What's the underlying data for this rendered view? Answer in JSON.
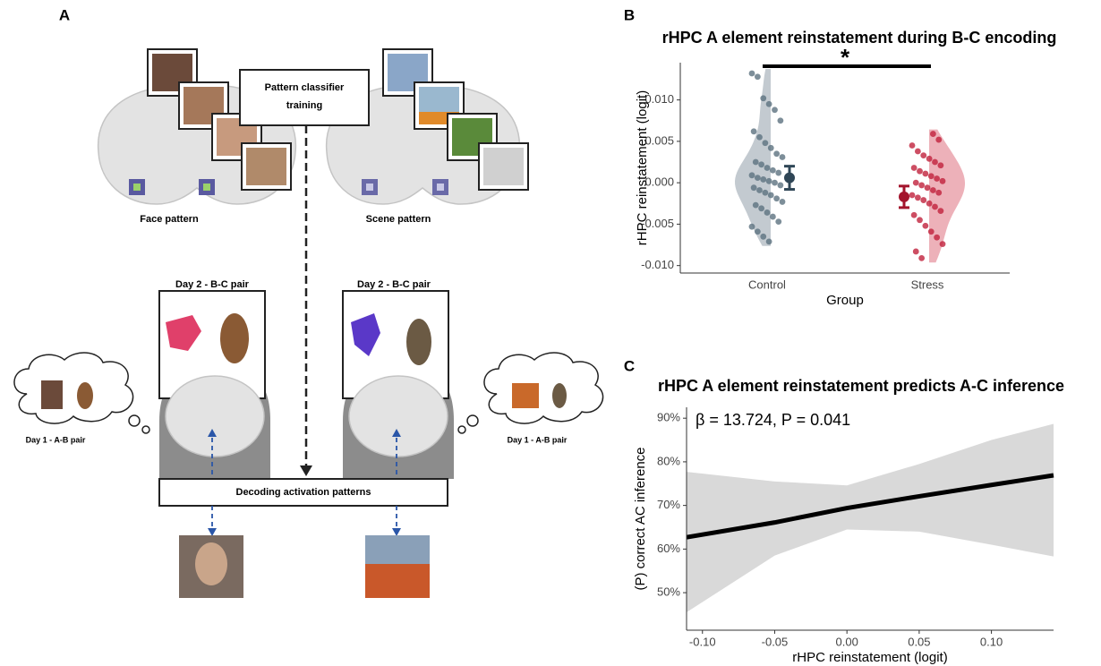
{
  "panels": {
    "a": "A",
    "b": "B",
    "c": "C"
  },
  "diagram": {
    "classifier": [
      "Pattern classifier",
      "training"
    ],
    "face_pattern": "Face pattern",
    "scene_pattern": "Scene pattern",
    "day2_left": "Day 2 - B-C pair",
    "day2_right": "Day 2 - B-C pair",
    "day1_left": "Day 1 - A-B pair",
    "day1_right": "Day 1 - A-B pair",
    "decoding": "Decoding activation patterns"
  },
  "chart_data": [
    {
      "type": "raincloud",
      "title": "rHPC A element reinstatement during B-C encoding",
      "x_label": "Group",
      "y_label": "rHPC reinstatement (logit)",
      "categories": [
        "Control",
        "Stress"
      ],
      "values": [
        [
          0.0132,
          0.0128,
          0.0102,
          0.0095,
          0.0088,
          0.0075,
          0.0062,
          0.0055,
          0.0048,
          0.0042,
          0.0035,
          0.0031,
          0.0025,
          0.0022,
          0.0018,
          0.0015,
          0.0012,
          0.0009,
          0.0006,
          0.0004,
          0.0002,
          0.0,
          -0.0003,
          -0.0006,
          -0.0009,
          -0.0012,
          -0.0015,
          -0.0019,
          -0.0023,
          -0.0027,
          -0.0031,
          -0.0036,
          -0.0041,
          -0.0047,
          -0.0053,
          -0.0059,
          -0.0065,
          -0.0071
        ],
        [
          0.0059,
          0.0052,
          0.0045,
          0.0038,
          0.0033,
          0.0029,
          0.0025,
          0.0021,
          0.0018,
          0.0014,
          0.0011,
          0.0008,
          0.0005,
          0.0002,
          0.0,
          -0.0003,
          -0.0006,
          -0.0009,
          -0.0012,
          -0.0015,
          -0.0018,
          -0.0021,
          -0.0025,
          -0.0029,
          -0.0034,
          -0.0039,
          -0.0045,
          -0.0052,
          -0.0059,
          -0.0066,
          -0.0074,
          -0.0083,
          -0.0091
        ]
      ],
      "means": [
        0.0006,
        -0.0017
      ],
      "errors": [
        0.0014,
        0.0013
      ],
      "colors": [
        "#5d7280",
        "#c0223c"
      ],
      "violin_colors": [
        "#b9c1c8",
        "#eaa3ad"
      ],
      "mean_colors": [
        "#2f4656",
        "#a3142c"
      ],
      "annotation": "*",
      "ylim": [
        -0.0109,
        0.0145
      ],
      "yticks": [
        {
          "value": 0.01,
          "label": "0.010"
        },
        {
          "value": 0.005,
          "label": "0.005"
        },
        {
          "value": 0,
          "label": "0.000"
        },
        {
          "value": -0.005,
          "label": "-0.005"
        },
        {
          "value": -0.01,
          "label": "-0.010"
        }
      ],
      "grid": false
    },
    {
      "type": "line",
      "title": "rHPC A element reinstatement predicts A-C inference",
      "annotation": "β = 13.724, P = 0.041",
      "x_label": "rHPC reinstatement (logit)",
      "y_label": "(P) correct AC inference",
      "x": [
        -0.111,
        -0.05,
        0.0,
        0.05,
        0.1,
        0.143
      ],
      "values": [
        62.7,
        66.1,
        69.4,
        72.1,
        74.7,
        76.9
      ],
      "upper": [
        77.7,
        75.5,
        74.6,
        79.5,
        85.0,
        88.7
      ],
      "lower": [
        45.5,
        58.5,
        64.5,
        64.0,
        61.0,
        58.3
      ],
      "color": "#000000",
      "band_color": "#d9d9d9",
      "xlim": [
        -0.111,
        0.143
      ],
      "ylim": [
        41.4,
        92.5
      ],
      "xticks": [
        {
          "value": -0.1,
          "label": "-0.10"
        },
        {
          "value": -0.05,
          "label": "-0.05"
        },
        {
          "value": 0,
          "label": "0.00"
        },
        {
          "value": 0.05,
          "label": "0.05"
        },
        {
          "value": 0.1,
          "label": "0.10"
        }
      ],
      "yticks": [
        {
          "value": 90,
          "label": "90%"
        },
        {
          "value": 80,
          "label": "80%"
        },
        {
          "value": 70,
          "label": "70%"
        },
        {
          "value": 60,
          "label": "60%"
        },
        {
          "value": 50,
          "label": "50%"
        }
      ],
      "grid": false
    }
  ]
}
